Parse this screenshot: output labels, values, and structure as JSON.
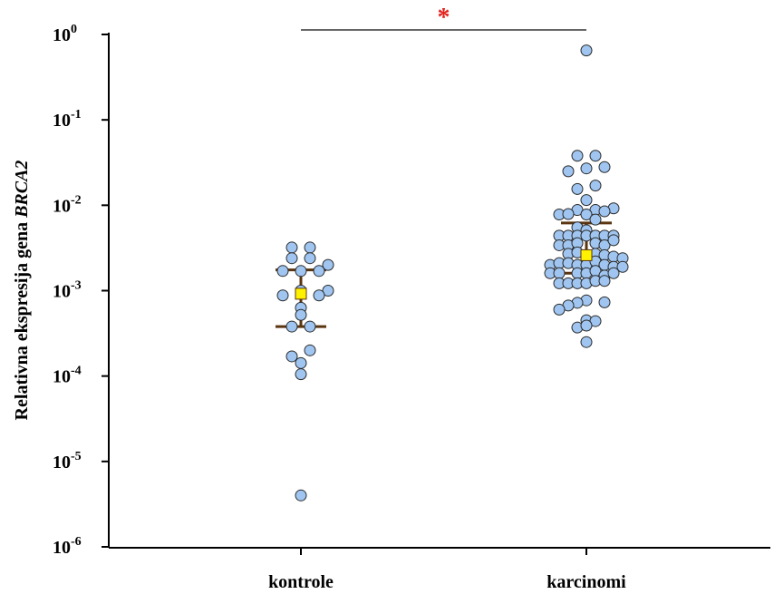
{
  "chart_data": {
    "type": "scatter",
    "title": "",
    "xlabel": "",
    "ylabel": {
      "prefix": "Relativna ekspresija gena ",
      "gene": "BRCA2"
    },
    "yscale": "log",
    "ylim": [
      1e-06,
      1
    ],
    "yticks": [
      {
        "value": 1,
        "base": "10",
        "exp": "0"
      },
      {
        "value": 0.1,
        "base": "10",
        "exp": "-1"
      },
      {
        "value": 0.01,
        "base": "10",
        "exp": "-2"
      },
      {
        "value": 0.001,
        "base": "10",
        "exp": "-3"
      },
      {
        "value": 0.0001,
        "base": "10",
        "exp": "-4"
      },
      {
        "value": 1e-05,
        "base": "10",
        "exp": "-5"
      },
      {
        "value": 1e-06,
        "base": "10",
        "exp": "-6"
      }
    ],
    "categories": [
      "kontrole",
      "karcinomi"
    ],
    "point_color": "#9fc5f0",
    "point_edge": "#2b2b2b",
    "median_color": "#fff200",
    "whisker_color": "#5a3510",
    "significance_color": "#e3201b",
    "significance": {
      "label": "*",
      "between": [
        "kontrole",
        "karcinomi"
      ]
    },
    "groups": [
      {
        "name": "kontrole",
        "median": 0.00092,
        "q1": 0.00038,
        "q3": 0.00175,
        "points": [
          {
            "dx": -1,
            "y": 0.0032
          },
          {
            "dx": 1,
            "y": 0.0032
          },
          {
            "dx": -1,
            "y": 0.0024
          },
          {
            "dx": 1,
            "y": 0.0024
          },
          {
            "dx": 3,
            "y": 0.002
          },
          {
            "dx": -2,
            "y": 0.0017
          },
          {
            "dx": 0,
            "y": 0.0017
          },
          {
            "dx": 2,
            "y": 0.0017
          },
          {
            "dx": 3,
            "y": 0.001
          },
          {
            "dx": -2,
            "y": 0.00088
          },
          {
            "dx": 0,
            "y": 0.001
          },
          {
            "dx": 2,
            "y": 0.00088
          },
          {
            "dx": 0,
            "y": 0.00063
          },
          {
            "dx": 0,
            "y": 0.00052
          },
          {
            "dx": -1,
            "y": 0.00038
          },
          {
            "dx": 1,
            "y": 0.00038
          },
          {
            "dx": 1,
            "y": 0.0002
          },
          {
            "dx": -1,
            "y": 0.00017
          },
          {
            "dx": 0,
            "y": 0.000142
          },
          {
            "dx": 0,
            "y": 0.000105
          },
          {
            "dx": 0,
            "y": 4e-06
          }
        ]
      },
      {
        "name": "karcinomi",
        "median": 0.0026,
        "q1": 0.0016,
        "q3": 0.0062,
        "points": [
          {
            "dx": 0,
            "y": 0.65
          },
          {
            "dx": -1,
            "y": 0.038
          },
          {
            "dx": 1,
            "y": 0.038
          },
          {
            "dx": 0,
            "y": 0.027
          },
          {
            "dx": -2,
            "y": 0.025
          },
          {
            "dx": 2,
            "y": 0.028
          },
          {
            "dx": 1,
            "y": 0.017
          },
          {
            "dx": -1,
            "y": 0.0155
          },
          {
            "dx": 0,
            "y": 0.0115
          },
          {
            "dx": -1,
            "y": 0.0088
          },
          {
            "dx": 1,
            "y": 0.0088
          },
          {
            "dx": 3,
            "y": 0.0092
          },
          {
            "dx": 2,
            "y": 0.0085
          },
          {
            "dx": -3,
            "y": 0.0078
          },
          {
            "dx": -2,
            "y": 0.0079
          },
          {
            "dx": 0,
            "y": 0.0078
          },
          {
            "dx": 1,
            "y": 0.0068
          },
          {
            "dx": -1,
            "y": 0.0055
          },
          {
            "dx": 0,
            "y": 0.0051
          },
          {
            "dx": -3,
            "y": 0.0044
          },
          {
            "dx": -2,
            "y": 0.0044
          },
          {
            "dx": -1,
            "y": 0.0044
          },
          {
            "dx": 0,
            "y": 0.0044
          },
          {
            "dx": 1,
            "y": 0.0044
          },
          {
            "dx": 2,
            "y": 0.0044
          },
          {
            "dx": 3,
            "y": 0.0044
          },
          {
            "dx": -3,
            "y": 0.0034
          },
          {
            "dx": -2,
            "y": 0.0034
          },
          {
            "dx": -1,
            "y": 0.0036
          },
          {
            "dx": 1,
            "y": 0.0036
          },
          {
            "dx": 2,
            "y": 0.0034
          },
          {
            "dx": 3,
            "y": 0.0039
          },
          {
            "dx": -2,
            "y": 0.0027
          },
          {
            "dx": -1,
            "y": 0.0028
          },
          {
            "dx": 1,
            "y": 0.0027
          },
          {
            "dx": 2,
            "y": 0.0026
          },
          {
            "dx": 3,
            "y": 0.0025
          },
          {
            "dx": 4,
            "y": 0.0024
          },
          {
            "dx": -4,
            "y": 0.002
          },
          {
            "dx": -3,
            "y": 0.0021
          },
          {
            "dx": -2,
            "y": 0.0021
          },
          {
            "dx": -1,
            "y": 0.002
          },
          {
            "dx": 0,
            "y": 0.002
          },
          {
            "dx": 1,
            "y": 0.0022
          },
          {
            "dx": 2,
            "y": 0.002
          },
          {
            "dx": 3,
            "y": 0.0019
          },
          {
            "dx": 4,
            "y": 0.0019
          },
          {
            "dx": -4,
            "y": 0.0016
          },
          {
            "dx": -3,
            "y": 0.0016
          },
          {
            "dx": -1,
            "y": 0.0016
          },
          {
            "dx": 0,
            "y": 0.0016
          },
          {
            "dx": 1,
            "y": 0.0017
          },
          {
            "dx": 2,
            "y": 0.0015
          },
          {
            "dx": 3,
            "y": 0.0016
          },
          {
            "dx": -3,
            "y": 0.00122
          },
          {
            "dx": -2,
            "y": 0.00122
          },
          {
            "dx": -1,
            "y": 0.00122
          },
          {
            "dx": 0,
            "y": 0.00122
          },
          {
            "dx": 1,
            "y": 0.0013
          },
          {
            "dx": 2,
            "y": 0.0013
          },
          {
            "dx": 0,
            "y": 0.00077
          },
          {
            "dx": -1,
            "y": 0.00072
          },
          {
            "dx": 2,
            "y": 0.00073
          },
          {
            "dx": -2,
            "y": 0.00067
          },
          {
            "dx": -3,
            "y": 0.0006
          },
          {
            "dx": 0,
            "y": 0.00045
          },
          {
            "dx": 1,
            "y": 0.00044
          },
          {
            "dx": -1,
            "y": 0.00037
          },
          {
            "dx": 0,
            "y": 0.00039
          },
          {
            "dx": 0,
            "y": 0.00025
          }
        ]
      }
    ]
  }
}
